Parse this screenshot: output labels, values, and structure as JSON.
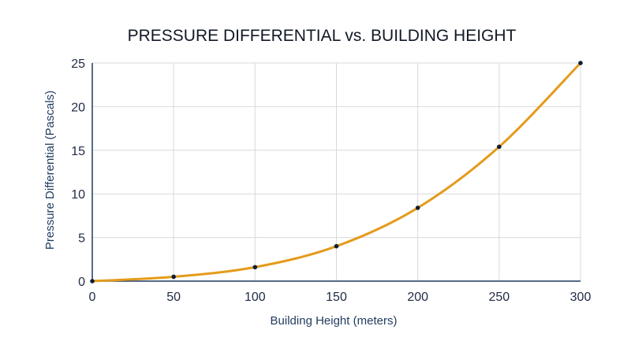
{
  "chart_data": {
    "type": "line",
    "title": "PRESSURE DIFFERENTIAL vs. BUILDING HEIGHT",
    "xlabel": "Building Height (meters)",
    "ylabel": "Pressure Differential (Pascals)",
    "xlim": [
      0,
      300
    ],
    "ylim": [
      0,
      25
    ],
    "x_ticks": [
      0,
      50,
      100,
      150,
      200,
      250,
      300
    ],
    "y_ticks": [
      0,
      5,
      10,
      15,
      20,
      25
    ],
    "grid": true,
    "series": [
      {
        "x": [
          0,
          50,
          100,
          150,
          200,
          250,
          300
        ],
        "y": [
          0,
          0.5,
          1.6,
          4.0,
          8.4,
          15.4,
          25.0
        ],
        "color": "#e49b1b",
        "marker_color": "#0f1e33"
      }
    ]
  },
  "colors": {
    "grid": "#d9d9d9",
    "axis": "#1f3a5f",
    "text": "#1f2a44"
  }
}
